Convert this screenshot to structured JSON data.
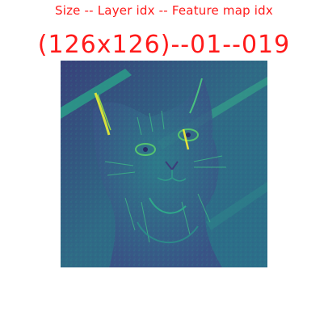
{
  "header": {
    "caption": "Size -- Layer idx -- Feature map idx",
    "values": "(126x126)--01--019"
  },
  "image": {
    "subject": "feature-map",
    "colormap": "viridis",
    "colors": {
      "low": "#3b1f6b",
      "mid": "#2f8e8c",
      "high": "#f2e33a"
    }
  }
}
